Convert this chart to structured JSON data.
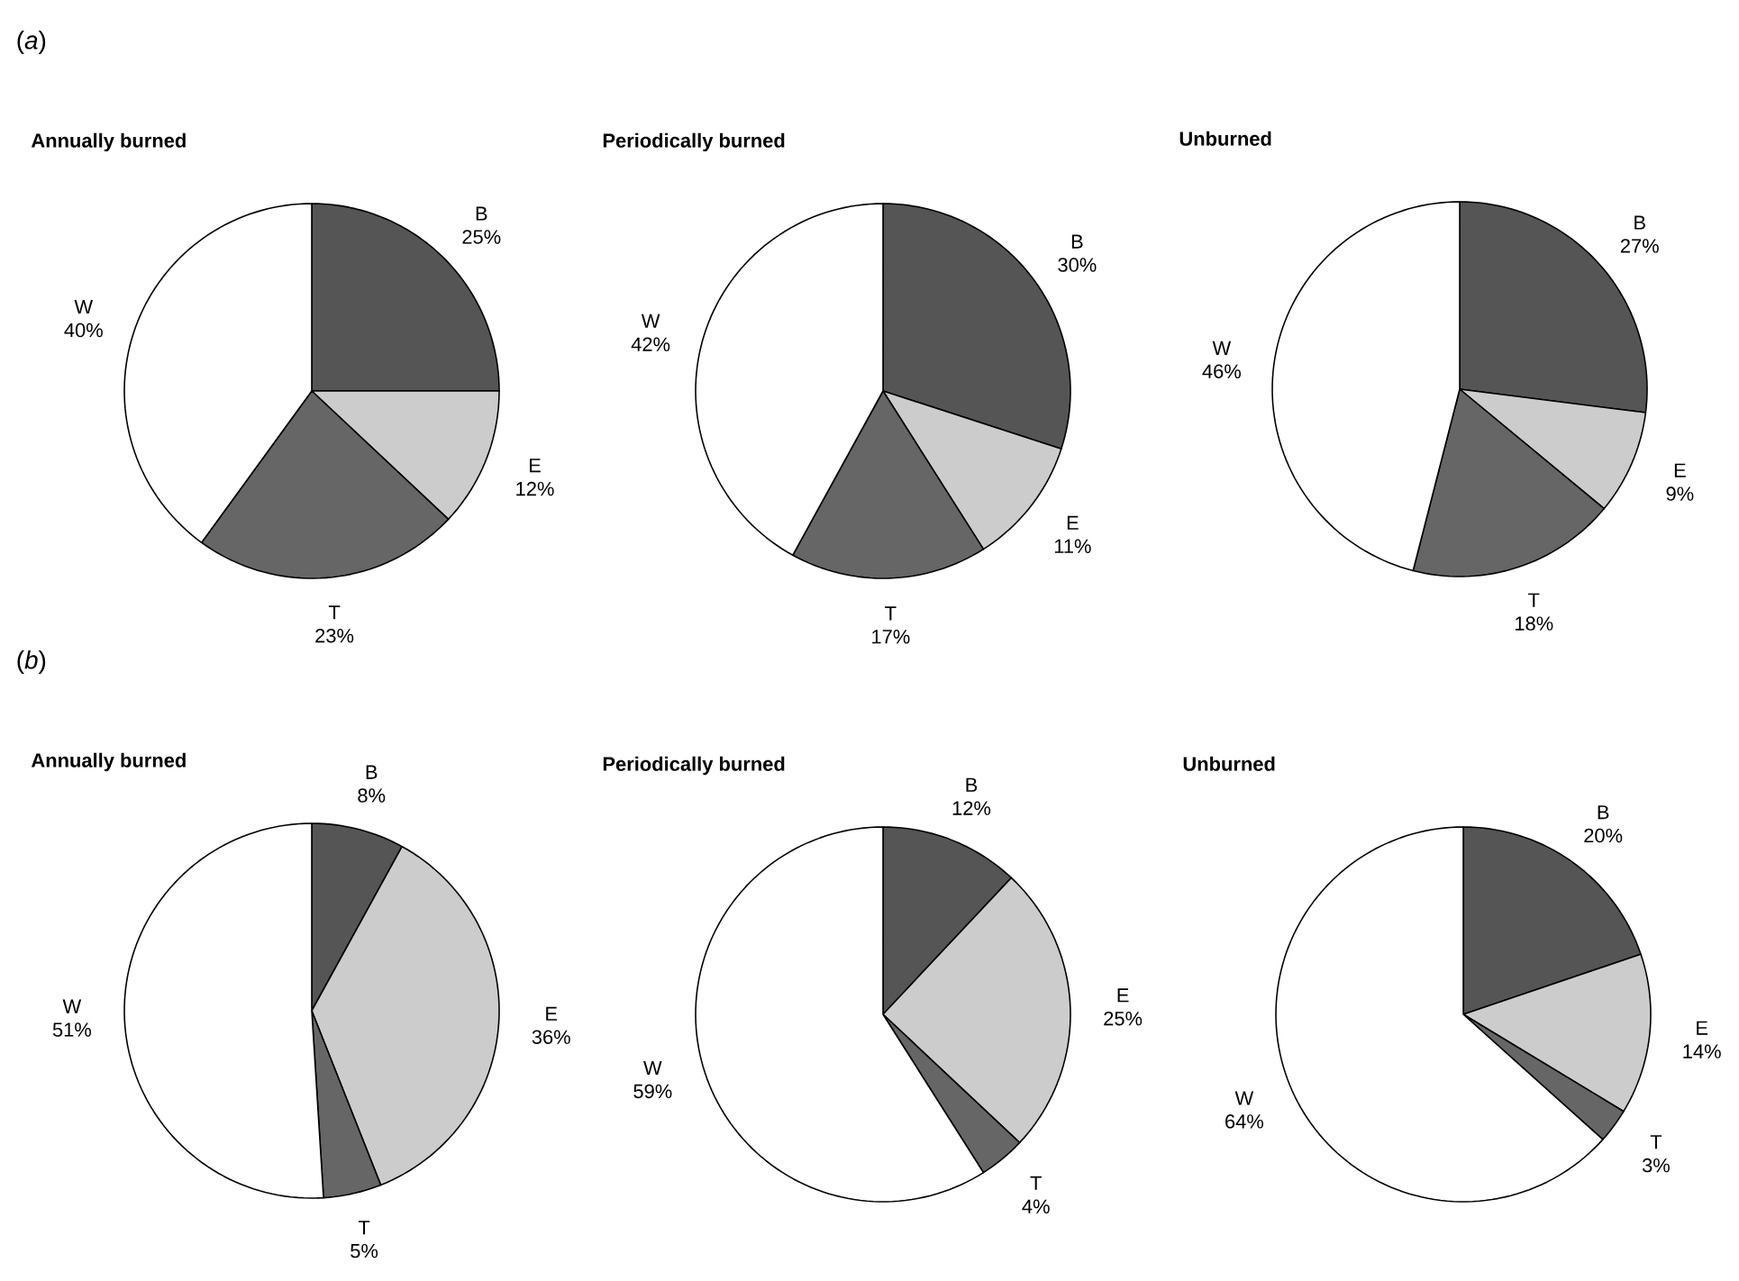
{
  "chart_data": [
    {
      "type": "pie",
      "title": "Annually burned",
      "annotations": [
        "(*a*)"
      ],
      "categories": [
        "B",
        "E",
        "T",
        "W"
      ],
      "values": [
        25,
        12,
        23,
        40
      ],
      "value_labels": [
        "25%",
        "12%",
        "23%",
        "40%"
      ],
      "colors": [
        "#555555",
        "#cccccc",
        "#666666",
        "#ffffff"
      ]
    },
    {
      "type": "pie",
      "title": "Periodically burned",
      "categories": [
        "B",
        "E",
        "T",
        "W"
      ],
      "values": [
        30,
        11,
        17,
        42
      ],
      "value_labels": [
        "30%",
        "11%",
        "17%",
        "42%"
      ],
      "colors": [
        "#555555",
        "#cccccc",
        "#666666",
        "#ffffff"
      ]
    },
    {
      "type": "pie",
      "title": "Unburned",
      "categories": [
        "B",
        "E",
        "T",
        "W"
      ],
      "values": [
        27,
        9,
        18,
        46
      ],
      "value_labels": [
        "27%",
        "9%",
        "18%",
        "46%"
      ],
      "colors": [
        "#555555",
        "#cccccc",
        "#666666",
        "#ffffff"
      ]
    },
    {
      "type": "pie",
      "title": "Annually burned",
      "annotations": [
        "(*b*)"
      ],
      "categories": [
        "B",
        "E",
        "T",
        "W"
      ],
      "values": [
        8,
        36,
        5,
        51
      ],
      "value_labels": [
        "8%",
        "36%",
        "5%",
        "51%"
      ],
      "colors": [
        "#555555",
        "#cccccc",
        "#666666",
        "#ffffff"
      ]
    },
    {
      "type": "pie",
      "title": "Periodically burned",
      "categories": [
        "B",
        "E",
        "T",
        "W"
      ],
      "values": [
        12,
        25,
        4,
        59
      ],
      "value_labels": [
        "12%",
        "25%",
        "4%",
        "59%"
      ],
      "colors": [
        "#555555",
        "#cccccc",
        "#666666",
        "#ffffff"
      ]
    },
    {
      "type": "pie",
      "title": "Unburned",
      "categories": [
        "B",
        "E",
        "T",
        "W"
      ],
      "values": [
        20,
        14,
        3,
        64
      ],
      "value_labels": [
        "20%",
        "14%",
        "3%",
        "64%"
      ],
      "colors": [
        "#555555",
        "#cccccc",
        "#666666",
        "#ffffff"
      ]
    }
  ]
}
